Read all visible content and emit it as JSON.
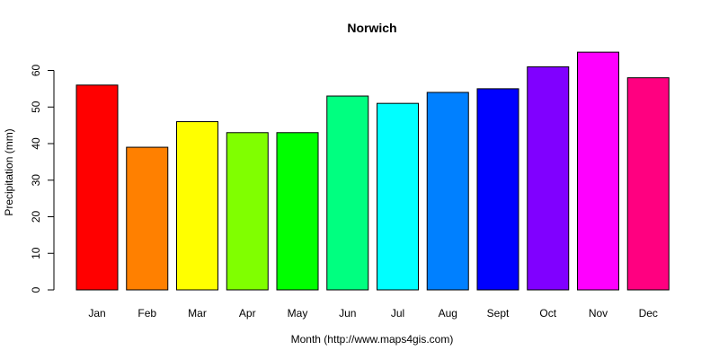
{
  "chart_data": {
    "type": "bar",
    "title": "Norwich",
    "xlabel": "Month (http://www.maps4gis.com)",
    "ylabel": "Precipitation (mm)",
    "ylim": [
      0,
      65
    ],
    "yticks": [
      0,
      10,
      20,
      30,
      40,
      50,
      60
    ],
    "categories": [
      "Jan",
      "Feb",
      "Mar",
      "Apr",
      "May",
      "Jun",
      "Jul",
      "Aug",
      "Sept",
      "Oct",
      "Nov",
      "Dec"
    ],
    "values": [
      56,
      39,
      46,
      43,
      43,
      53,
      51,
      54,
      55,
      61,
      65,
      58
    ],
    "colors": [
      "#ff0000",
      "#ff8000",
      "#ffff00",
      "#80ff00",
      "#00ff00",
      "#00ff80",
      "#00ffff",
      "#0080ff",
      "#0000ff",
      "#8000ff",
      "#ff00ff",
      "#ff0080"
    ],
    "grid": false,
    "legend": "none"
  }
}
